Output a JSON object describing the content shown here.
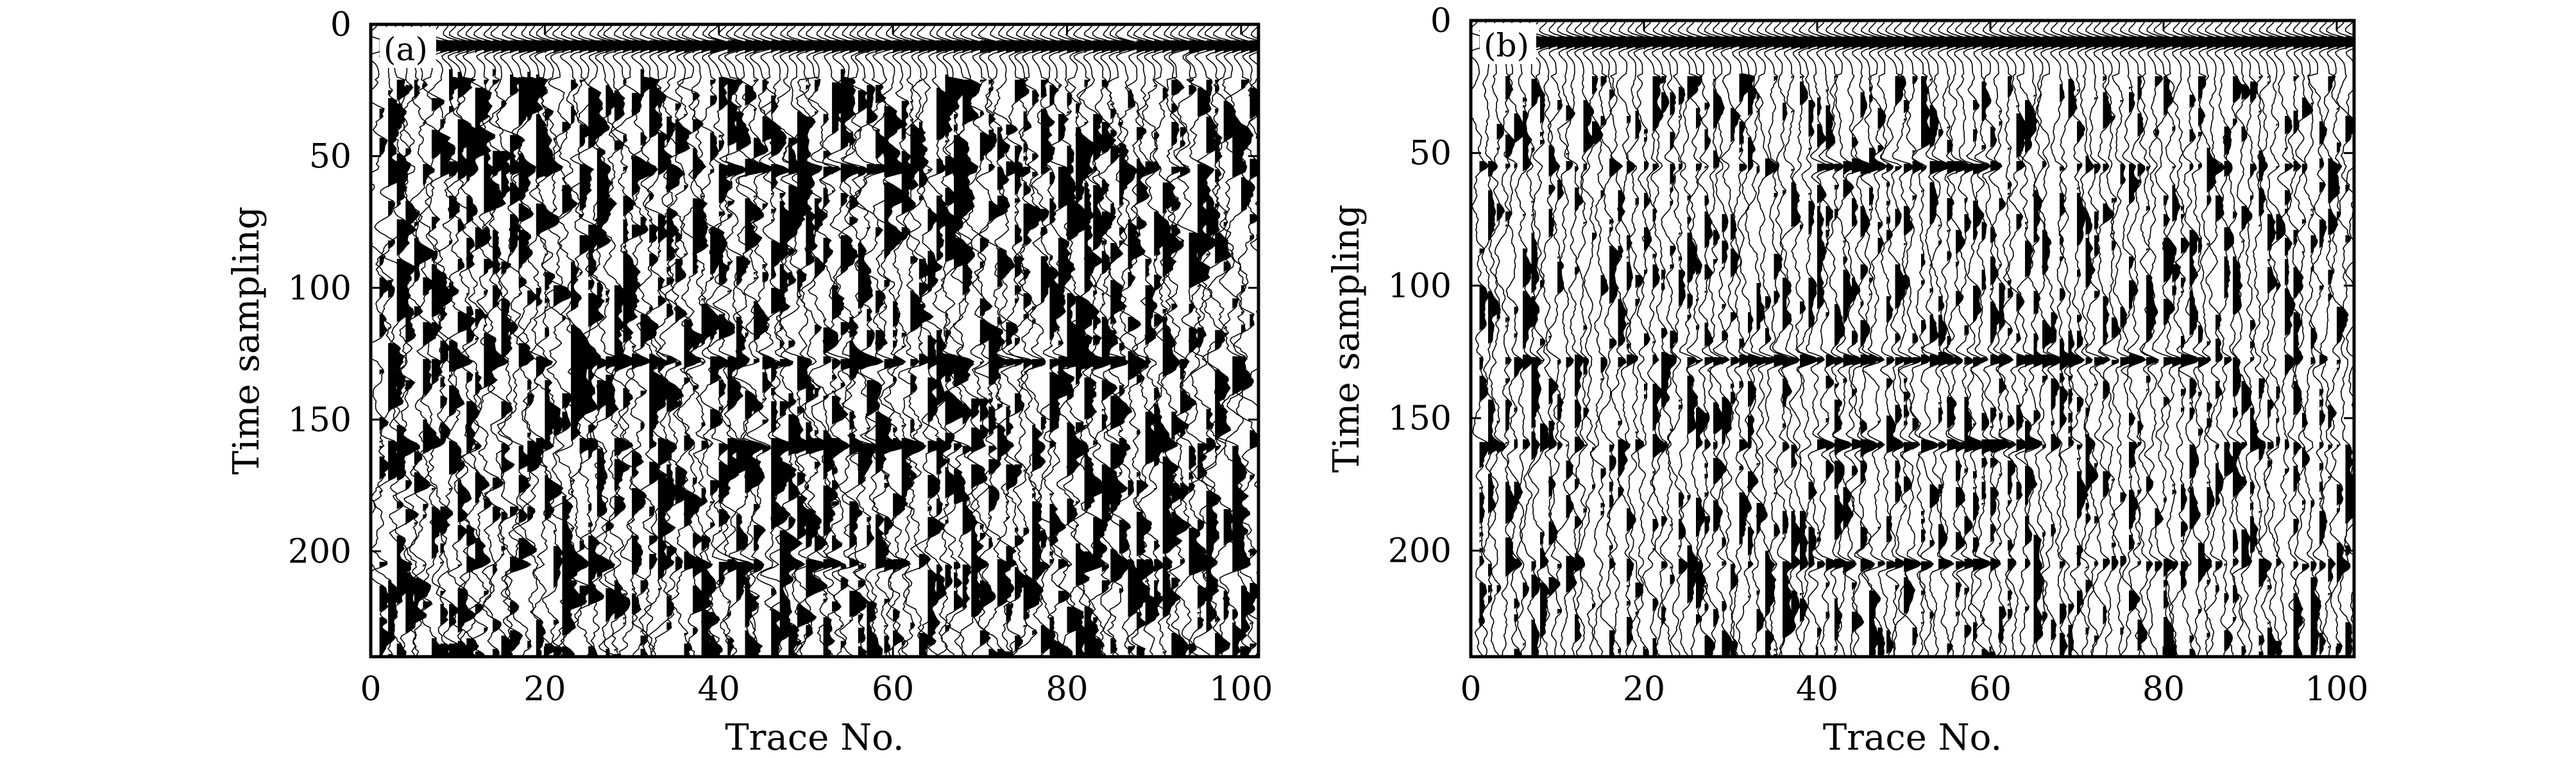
{
  "chart_data": [
    {
      "type": "seismic-wiggle",
      "panel_label": "(a)",
      "xlabel": "Trace No.",
      "ylabel": "Time sampling",
      "xlim": [
        0,
        102
      ],
      "ylim": [
        0,
        240
      ],
      "y_inverted": true,
      "xticks": [
        0,
        20,
        40,
        60,
        80,
        100
      ],
      "yticks": [
        0,
        50,
        100,
        150,
        200
      ],
      "traces": 102,
      "samples": 240,
      "fill_positive": true,
      "noise_level": "high",
      "events": [
        {
          "name": "direct arrival",
          "t0": 8,
          "slope": 0
        },
        {
          "name": "reflector",
          "t0": 55,
          "x_range": [
            40,
            60
          ]
        },
        {
          "name": "reflector",
          "t0": 128,
          "x_range": [
            25,
            85
          ]
        },
        {
          "name": "reflector",
          "t0": 160,
          "x_range": [
            40,
            65
          ]
        },
        {
          "name": "reflector",
          "t0": 205,
          "x_range": [
            40,
            60
          ]
        }
      ]
    },
    {
      "type": "seismic-wiggle",
      "panel_label": "(b)",
      "xlabel": "Trace No.",
      "ylabel": "Time sampling",
      "xlim": [
        0,
        102
      ],
      "ylim": [
        0,
        240
      ],
      "y_inverted": true,
      "xticks": [
        0,
        20,
        40,
        60,
        80,
        100
      ],
      "yticks": [
        0,
        50,
        100,
        150,
        200
      ],
      "traces": 102,
      "samples": 240,
      "fill_positive": true,
      "noise_level": "moderate",
      "events": [
        {
          "name": "direct arrival",
          "t0": 8,
          "slope": 0
        },
        {
          "name": "reflector",
          "t0": 55,
          "x_range": [
            40,
            60
          ]
        },
        {
          "name": "reflector",
          "t0": 128,
          "x_range": [
            25,
            85
          ]
        },
        {
          "name": "reflector",
          "t0": 160,
          "x_range": [
            40,
            65
          ]
        },
        {
          "name": "reflector",
          "t0": 205,
          "x_range": [
            40,
            60
          ]
        }
      ]
    }
  ]
}
